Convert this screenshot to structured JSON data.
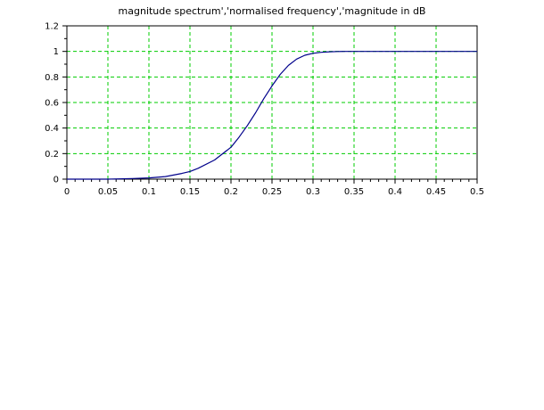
{
  "chart_data": {
    "type": "line",
    "title": "magnitude spectrum','normalised frequency','magnitude in dB",
    "xlabel": "",
    "ylabel": "",
    "xlim": [
      0,
      0.5
    ],
    "ylim": [
      0,
      1.2
    ],
    "xticks": [
      "0",
      "0.05",
      "0.1",
      "0.15",
      "0.2",
      "0.25",
      "0.3",
      "0.35",
      "0.4",
      "0.45",
      "0.5"
    ],
    "yticks": [
      "0",
      "0.2",
      "0.4",
      "0.6",
      "0.8",
      "1",
      "1.2"
    ],
    "grid": true,
    "grid_color": "#00cc00",
    "line_color": "#00008b",
    "series": [
      {
        "x": [
          0,
          0.05,
          0.08,
          0.1,
          0.12,
          0.14,
          0.15,
          0.16,
          0.18,
          0.2,
          0.21,
          0.22,
          0.23,
          0.24,
          0.25,
          0.26,
          0.27,
          0.28,
          0.29,
          0.3,
          0.31,
          0.32,
          0.33,
          0.34,
          0.35,
          0.4,
          0.45,
          0.5
        ],
        "y": [
          0,
          0,
          0.005,
          0.01,
          0.02,
          0.045,
          0.06,
          0.085,
          0.15,
          0.25,
          0.33,
          0.42,
          0.52,
          0.63,
          0.73,
          0.82,
          0.89,
          0.94,
          0.97,
          0.985,
          0.993,
          0.997,
          0.999,
          1,
          1,
          1,
          1,
          1
        ]
      }
    ]
  }
}
